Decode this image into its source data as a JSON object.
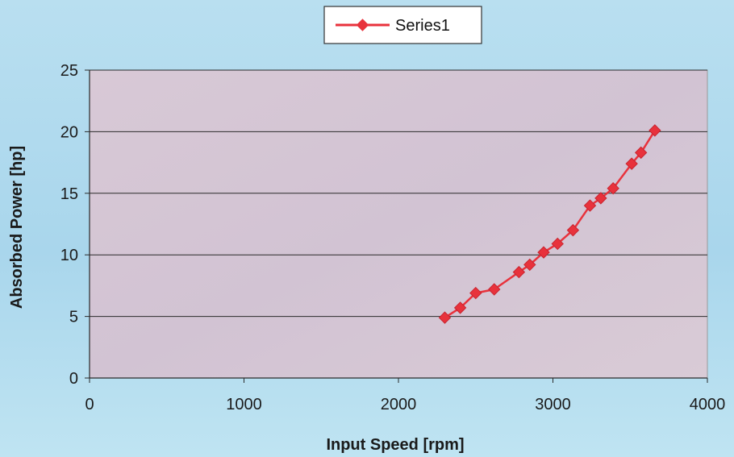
{
  "chart_data": {
    "type": "line",
    "title": "",
    "xlabel": "Input Speed [rpm]",
    "ylabel": "Absorbed Power [hp]",
    "xlim": [
      0,
      4000
    ],
    "ylim": [
      0,
      25
    ],
    "xticks": [
      0,
      1000,
      2000,
      3000,
      4000
    ],
    "yticks": [
      0,
      5,
      10,
      15,
      20,
      25
    ],
    "x_tick_labels": [
      "0",
      "1000",
      "2000",
      "3000",
      "4000"
    ],
    "y_tick_labels": [
      "0",
      "5",
      "10",
      "15",
      "20",
      "25"
    ],
    "grid": "horizontal",
    "legend_position": "top-center",
    "series": [
      {
        "name": "Series1",
        "color": "#e8323c",
        "marker": "diamond",
        "x": [
          2300,
          2400,
          2500,
          2620,
          2780,
          2850,
          2940,
          3030,
          3130,
          3240,
          3310,
          3390,
          3510,
          3570,
          3660
        ],
        "y": [
          4.9,
          5.7,
          6.9,
          7.2,
          8.6,
          9.2,
          10.2,
          10.9,
          12.0,
          14.0,
          14.6,
          15.4,
          17.4,
          18.3,
          20.1
        ]
      }
    ]
  }
}
